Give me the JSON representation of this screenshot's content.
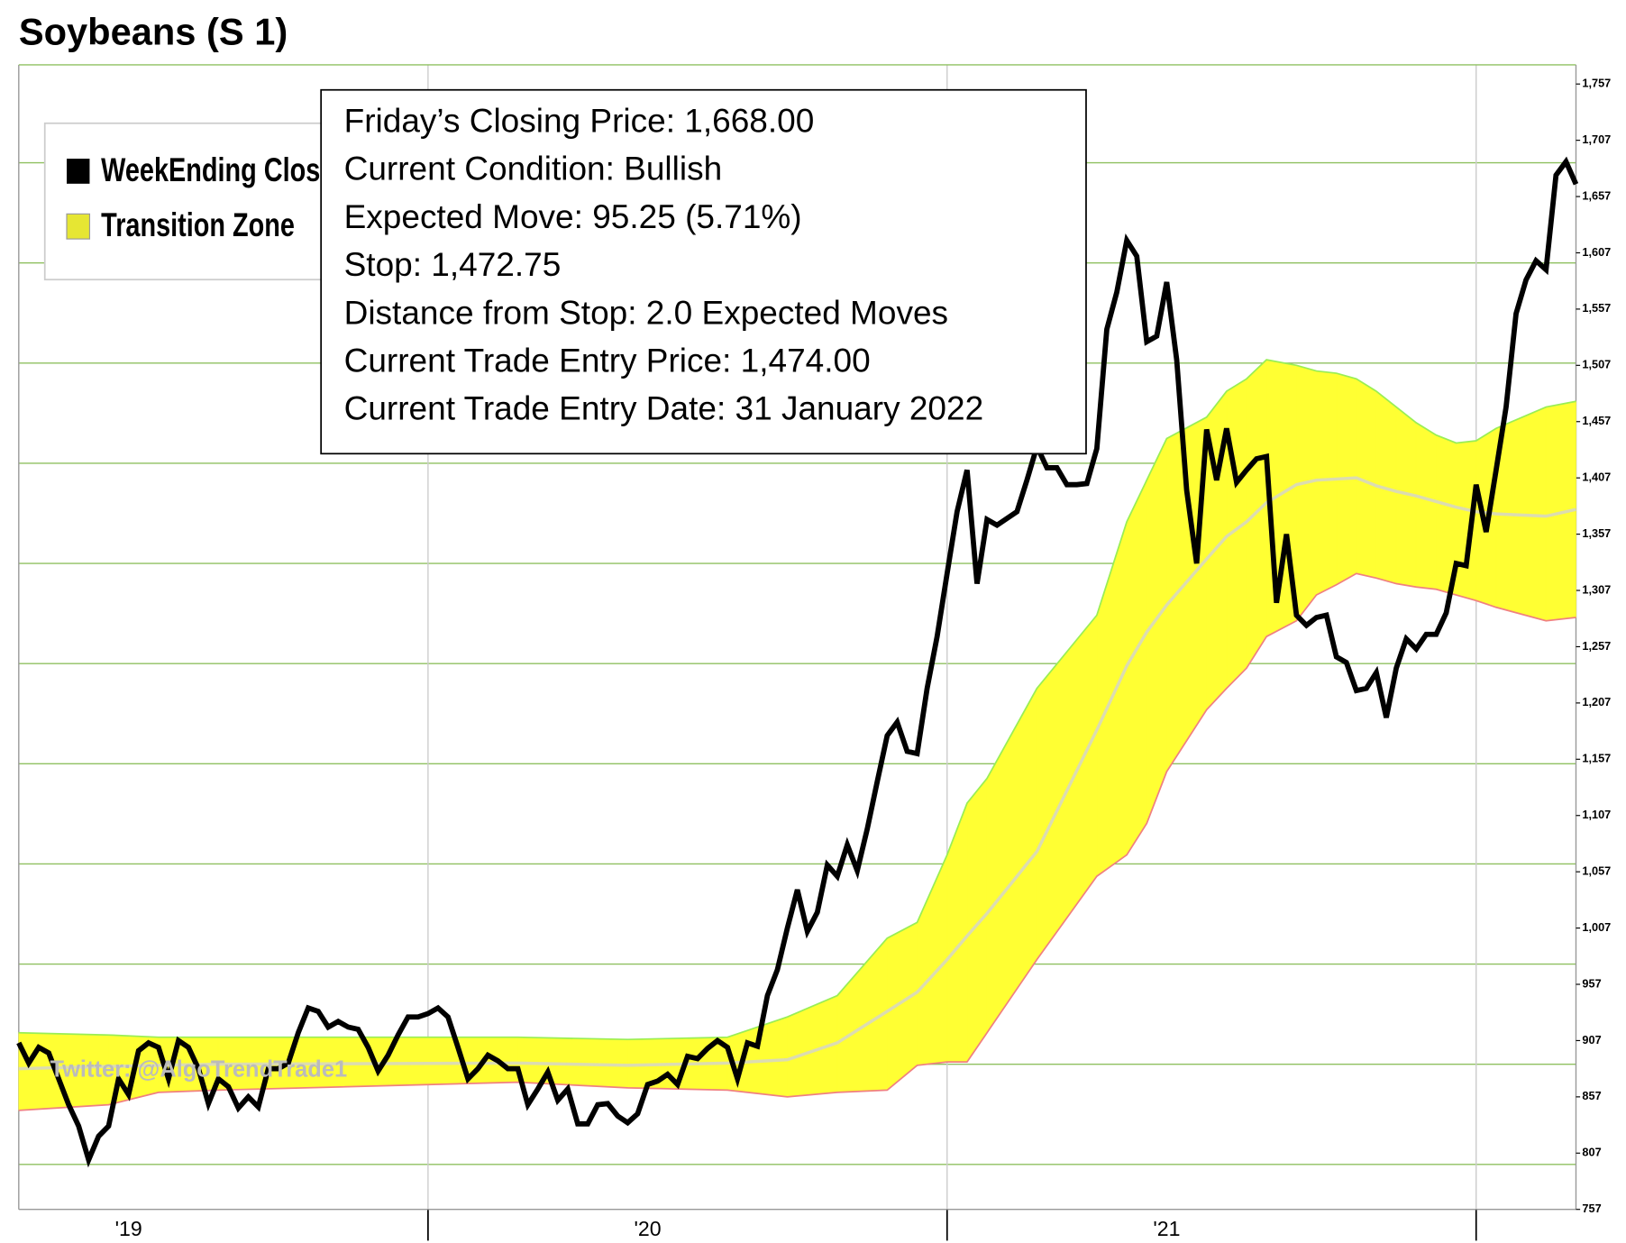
{
  "chart_data": {
    "type": "line",
    "title": "Soybeans (S 1)",
    "watermark": "Twitter: @AlgoTrendTrade1",
    "annotations": [
      "Friday’s Closing Price: 1,668.00",
      "Current Condition: Bullish",
      "Expected Move: 95.25 (5.71%)",
      "Stop: 1,472.75",
      "Distance from Stop: 2.0 Expected Moves",
      "Current Trade Entry Price: 1,474.00",
      "Current Trade Entry Date: 31 January 2022"
    ],
    "xlim": [
      0,
      156
    ],
    "xticks": [
      {
        "value": 11,
        "label": "'19"
      },
      {
        "value": 63,
        "label": "'20"
      },
      {
        "value": 115,
        "label": "'21"
      }
    ],
    "xgrid": [
      41,
      93,
      146
    ],
    "ylim": [
      757,
      1774
    ],
    "yticks": [
      757,
      807,
      857,
      907,
      957,
      {
        "value": 1007,
        "label": "1,007"
      },
      {
        "value": 1057,
        "label": "1,057"
      },
      {
        "value": 1107,
        "label": "1,107"
      },
      {
        "value": 1157,
        "label": "1,157"
      },
      {
        "value": 1207,
        "label": "1,207"
      },
      {
        "value": 1257,
        "label": "1,257"
      },
      {
        "value": 1307,
        "label": "1,307"
      },
      {
        "value": 1357,
        "label": "1,357"
      },
      {
        "value": 1407,
        "label": "1,407"
      },
      {
        "value": 1457,
        "label": "1,457"
      },
      {
        "value": 1507,
        "label": "1,507"
      },
      {
        "value": 1557,
        "label": "1,557"
      },
      {
        "value": 1607,
        "label": "1,607"
      },
      {
        "value": 1657,
        "label": "1,657"
      },
      {
        "value": 1707,
        "label": "1,707"
      },
      {
        "value": 1757,
        "label": "1,757"
      }
    ],
    "ygrid": [
      797,
      886,
      975,
      1064,
      1153,
      1242,
      1331,
      1420,
      1509,
      1598,
      1687
    ],
    "grid": true,
    "legend": "upper-left",
    "series": [
      {
        "name": "WeekEnding Close",
        "color": "#000000",
        "x": [
          0,
          1,
          2,
          3,
          4,
          5,
          6,
          7,
          8,
          9,
          10,
          11,
          12,
          13,
          14,
          15,
          16,
          17,
          18,
          19,
          20,
          21,
          22,
          23,
          24,
          25,
          26,
          27,
          28,
          29,
          30,
          31,
          32,
          33,
          34,
          35,
          36,
          37,
          38,
          39,
          40,
          41,
          42,
          43,
          44,
          45,
          46,
          47,
          48,
          49,
          50,
          51,
          52,
          53,
          54,
          55,
          56,
          57,
          58,
          59,
          60,
          61,
          62,
          63,
          64,
          65,
          66,
          67,
          68,
          69,
          70,
          71,
          72,
          73,
          74,
          75,
          76,
          77,
          78,
          79,
          80,
          81,
          82,
          83,
          84,
          85,
          86,
          87,
          88,
          89,
          90,
          91,
          92,
          93,
          94,
          95,
          96,
          97,
          98,
          99,
          100,
          101,
          102,
          103,
          104,
          105,
          106,
          107,
          108,
          109,
          110,
          111,
          112,
          113,
          114,
          115,
          116,
          117,
          118,
          119,
          120,
          121,
          122,
          123,
          124,
          125,
          126,
          127,
          128,
          129,
          130,
          131,
          132,
          133,
          134,
          135,
          136,
          137,
          138,
          139,
          140,
          141,
          142,
          143,
          144,
          145,
          146,
          147,
          148,
          149,
          150,
          151,
          152,
          153,
          154,
          155,
          156
        ],
        "values": [
          905,
          887,
          901,
          896,
          873,
          850,
          831,
          801,
          822,
          831,
          873,
          859,
          898,
          905,
          901,
          873,
          907,
          901,
          882,
          851,
          873,
          866,
          847,
          857,
          848,
          882,
          882,
          887,
          914,
          936,
          933,
          919,
          924,
          919,
          917,
          901,
          880,
          894,
          912,
          928,
          928,
          931,
          936,
          928,
          901,
          873,
          882,
          894,
          889,
          882,
          882,
          850,
          864,
          879,
          854,
          864,
          833,
          833,
          850,
          851,
          840,
          834,
          842,
          868,
          871,
          877,
          868,
          893,
          891,
          900,
          907,
          901,
          873,
          905,
          902,
          947,
          970,
          1007,
          1041,
          1004,
          1021,
          1063,
          1053,
          1081,
          1058,
          1095,
          1137,
          1178,
          1190,
          1164,
          1162,
          1220,
          1266,
          1322,
          1377,
          1414,
          1313,
          1370,
          1365,
          1371,
          1377,
          1405,
          1435,
          1416,
          1416,
          1401,
          1401,
          1402,
          1433,
          1539,
          1572,
          1618,
          1604,
          1528,
          1533,
          1581,
          1512,
          1396,
          1331,
          1450,
          1405,
          1451,
          1403,
          1414,
          1424,
          1426,
          1296,
          1357,
          1285,
          1276,
          1283,
          1285,
          1248,
          1243,
          1218,
          1220,
          1234,
          1194,
          1238,
          1264,
          1255,
          1268,
          1268,
          1287,
          1331,
          1329,
          1401,
          1359,
          1414,
          1470,
          1553,
          1583,
          1600,
          1592,
          1676,
          1688,
          1668
        ]
      }
    ],
    "band": {
      "name": "Transition Zone",
      "color": "#ffff33",
      "legend_color": "#e6e633",
      "upper_color": "#99ee55",
      "lower_color": "#f08080",
      "mid_color": "#dcdcb0",
      "x": [
        0,
        9,
        14,
        20,
        50,
        61,
        71,
        77,
        82,
        87,
        90,
        93,
        95,
        97,
        102,
        108,
        111,
        113,
        115,
        119,
        121,
        123,
        125,
        128,
        130,
        132,
        134,
        136,
        138,
        140,
        142,
        144,
        146,
        148,
        153,
        156
      ],
      "upper": [
        914,
        912,
        910,
        910,
        910,
        908,
        910,
        928,
        947,
        998,
        1012,
        1072,
        1118,
        1140,
        1220,
        1285,
        1368,
        1405,
        1442,
        1461,
        1484,
        1495,
        1512,
        1507,
        1502,
        1500,
        1495,
        1484,
        1470,
        1456,
        1445,
        1438,
        1440,
        1451,
        1470,
        1475
      ],
      "lower": [
        845,
        850,
        861,
        863,
        870,
        865,
        863,
        857,
        861,
        863,
        885,
        888,
        888,
        914,
        979,
        1053,
        1072,
        1100,
        1146,
        1201,
        1220,
        1238,
        1266,
        1280,
        1303,
        1312,
        1322,
        1318,
        1313,
        1310,
        1308,
        1303,
        1298,
        1292,
        1280,
        1283
      ],
      "mid": [
        882,
        884,
        885,
        886,
        887,
        885,
        887,
        890,
        905,
        933,
        950,
        979,
        1000,
        1020,
        1075,
        1183,
        1240,
        1270,
        1294,
        1335,
        1355,
        1368,
        1385,
        1401,
        1405,
        1406,
        1407,
        1400,
        1395,
        1391,
        1386,
        1381,
        1377,
        1375,
        1373,
        1379
      ]
    }
  }
}
